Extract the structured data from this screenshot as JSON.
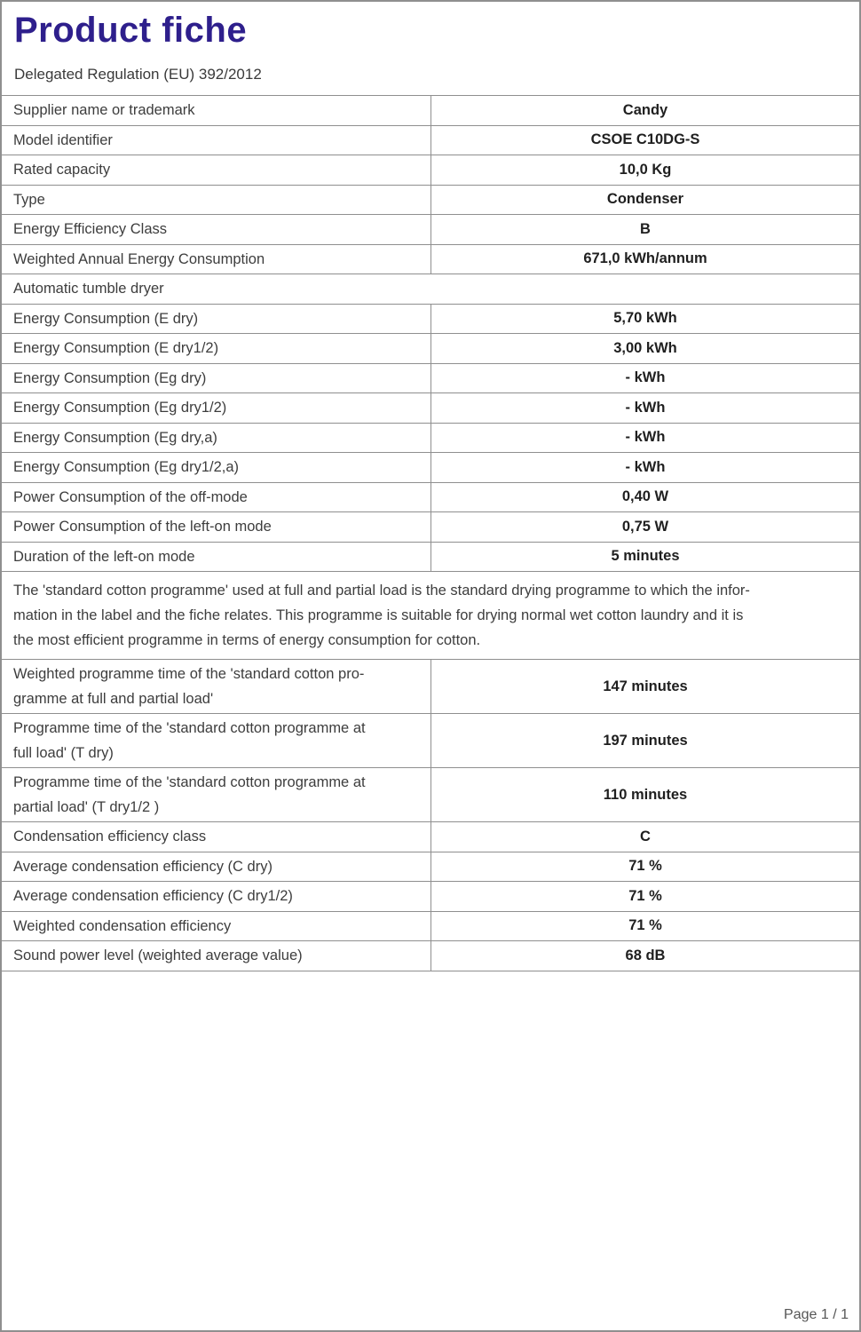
{
  "page": {
    "title": "Product fiche",
    "subtitle": "Delegated Regulation (EU) 392/2012",
    "footer": "Page 1 / 1",
    "title_color": "#2e1f8c",
    "border_color": "#8f8f8f"
  },
  "table": {
    "rows": [
      {
        "type": "pair",
        "label": "Supplier name or trademark",
        "value": "Candy"
      },
      {
        "type": "pair",
        "label": "Model identifier",
        "value": "CSOE C10DG-S"
      },
      {
        "type": "pair",
        "label": "Rated capacity",
        "value": "10,0 Kg"
      },
      {
        "type": "pair",
        "label": "Type",
        "value": "Condenser"
      },
      {
        "type": "pair",
        "label": "Energy Efficiency Class",
        "value": "B"
      },
      {
        "type": "pair",
        "label": "Weighted Annual Energy Consumption",
        "value": "671,0 kWh/annum"
      },
      {
        "type": "full",
        "label": "Automatic tumble dryer"
      },
      {
        "type": "pair",
        "label": "Energy Consumption (E dry)",
        "value": "5,70 kWh"
      },
      {
        "type": "pair",
        "label": "Energy Consumption (E dry1/2)",
        "value": "3,00 kWh"
      },
      {
        "type": "pair",
        "label": "Energy Consumption (Eg dry)",
        "value": "- kWh"
      },
      {
        "type": "pair",
        "label": "Energy Consumption (Eg dry1/2)",
        "value": "- kWh"
      },
      {
        "type": "pair",
        "label": "Energy Consumption (Eg dry,a)",
        "value": "- kWh"
      },
      {
        "type": "pair",
        "label": "Energy Consumption (Eg dry1/2,a)",
        "value": "- kWh"
      },
      {
        "type": "pair",
        "label": "Power Consumption of the off-mode",
        "value": "0,40 W"
      },
      {
        "type": "pair",
        "label": "Power Consumption of the left-on mode",
        "value": "0,75 W"
      },
      {
        "type": "pair",
        "label": "Duration of the left-on mode",
        "value": "5 minutes"
      },
      {
        "type": "note",
        "label": "The 'standard cotton programme' used at full and partial load is the standard drying programme to which the infor-\nmation in the label and the fiche relates. This programme is suitable for drying normal wet cotton laundry and it is\nthe most efficient programme in terms of energy consumption for cotton."
      },
      {
        "type": "pair2",
        "label": "Weighted programme time of the 'standard cotton pro-\ngramme at full and partial load'",
        "value": "147 minutes"
      },
      {
        "type": "pair2",
        "label": "Programme time of the 'standard cotton programme at\nfull load' (T dry)",
        "value": "197 minutes"
      },
      {
        "type": "pair2",
        "label": "Programme time of the 'standard cotton programme at\npartial load' (T dry1/2 )",
        "value": "110 minutes"
      },
      {
        "type": "pair",
        "label": "Condensation efficiency class",
        "value": "C"
      },
      {
        "type": "pair",
        "label": "Average condensation efficiency (C dry)",
        "value": "71 %"
      },
      {
        "type": "pair",
        "label": "Average condensation efficiency (C dry1/2)",
        "value": "71 %"
      },
      {
        "type": "pair",
        "label": "Weighted condensation efficiency",
        "value": "71 %"
      },
      {
        "type": "pair",
        "label": "Sound power level (weighted average value)",
        "value": "68 dB"
      }
    ]
  }
}
